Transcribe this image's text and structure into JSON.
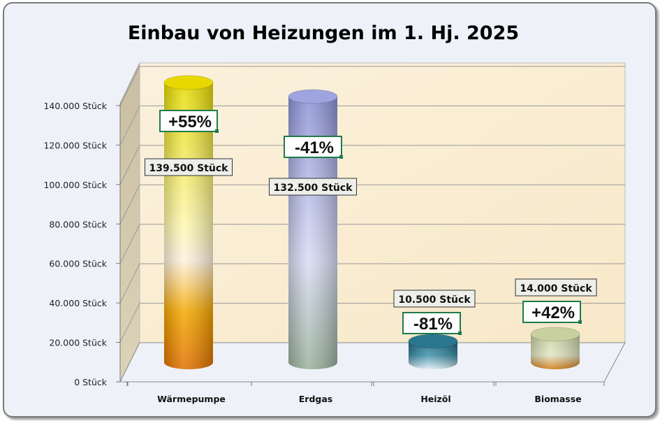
{
  "chart_data": {
    "type": "bar",
    "style": "3d-cylinder",
    "title": "Einbau von Heizungen im 1. Hj. 2025",
    "xlabel": "",
    "ylabel": "",
    "ylim": [
      0,
      140000
    ],
    "y_ticks": [
      "0 Stück",
      "20.000 Stück",
      "40.000 Stück",
      "60.000 Stück",
      "80.000 Stück",
      "100.000 Stück",
      "120.000 Stück",
      "140.000 Stück"
    ],
    "categories": [
      "Wärmepumpe",
      "Erdgas",
      "Heizöl",
      "Biomasse"
    ],
    "values": [
      139500,
      132500,
      10500,
      14000
    ],
    "value_labels": [
      "139.500 Stück",
      "132.500 Stück",
      "10.500 Stück",
      "14.000 Stück"
    ],
    "change_labels": [
      "+55%",
      "-41%",
      "-81%",
      "+42%"
    ],
    "colors": [
      "#e8d800",
      "#9ea4e0",
      "#2a7890",
      "#c8d0a0"
    ],
    "grid": true
  }
}
